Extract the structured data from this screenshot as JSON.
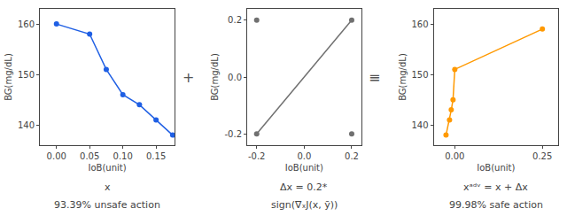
{
  "chart_data": [
    {
      "type": "line",
      "x": [
        0.0,
        0.05,
        0.075,
        0.1,
        0.125,
        0.15,
        0.175
      ],
      "values": [
        160,
        158,
        151,
        146,
        144,
        141,
        138
      ],
      "color": "#1f5fe4",
      "marker": "circle",
      "xlabel": "IoB(unit)",
      "ylabel": "BG(mg/dL)",
      "xlim": [
        -0.025,
        0.178
      ],
      "ylim": [
        136,
        163
      ],
      "xticks": [
        {
          "value": 0,
          "label": "0.00"
        },
        0.05,
        {
          "value": 0.1,
          "label": "0.10"
        },
        0.15
      ],
      "yticks": [
        140,
        150,
        160
      ],
      "grid": false,
      "annotations": [
        "x",
        "93.39% unsafe action"
      ]
    },
    {
      "type": "line",
      "series": [
        {
          "type": "line",
          "color": "#707070",
          "x": [
            -0.2,
            0.2
          ],
          "values": [
            -0.2,
            0.2
          ]
        },
        {
          "type": "scatter",
          "color": "#707070",
          "x": [
            -0.2,
            0.2,
            -0.2,
            0.2
          ],
          "values": [
            0.2,
            0.2,
            -0.2,
            -0.2
          ]
        }
      ],
      "xlabel": "IoB(unit)",
      "ylabel": "BG(mg/dL)",
      "xlim": [
        -0.24,
        0.24
      ],
      "ylim": [
        -0.24,
        0.24
      ],
      "xticks": [
        -0.2,
        {
          "value": 0,
          "label": "0.0"
        },
        0.2
      ],
      "yticks": [
        -0.2,
        {
          "value": 0,
          "label": "0.0"
        },
        0.2
      ],
      "grid": false,
      "annotations": [
        "Δx = 0.2*",
        "sign(∇ₓJ(x, ȳ))"
      ]
    },
    {
      "type": "line",
      "x": [
        -0.025,
        -0.015,
        -0.01,
        -0.005,
        0.0,
        0.25
      ],
      "values": [
        138,
        141,
        143,
        145,
        151,
        159
      ],
      "color": "#ff9900",
      "marker": "circle",
      "xlabel": "IoB(unit)",
      "ylabel": "BG(mg/dL)",
      "xlim": [
        -0.06,
        0.295
      ],
      "ylim": [
        136,
        163
      ],
      "xticks": [
        {
          "value": 0,
          "label": "0.00"
        },
        0.25
      ],
      "yticks": [
        140,
        150,
        160
      ],
      "grid": false,
      "annotations": [
        "xᵃᵈᵛ = x + Δx",
        "99.98% safe action"
      ]
    }
  ],
  "annotations": [
    "+",
    "≡"
  ]
}
